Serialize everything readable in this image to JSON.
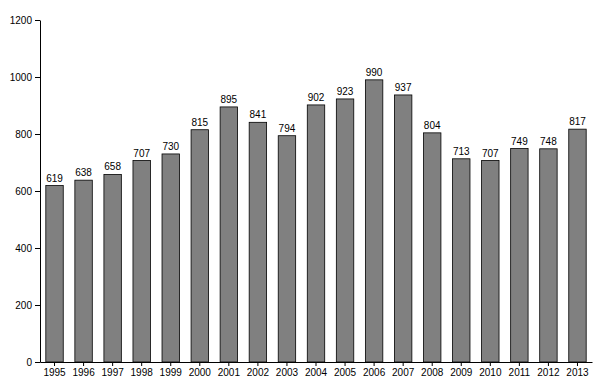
{
  "chart_data": {
    "type": "bar",
    "categories": [
      "1995",
      "1996",
      "1997",
      "1998",
      "1999",
      "2000",
      "2001",
      "2002",
      "2003",
      "2004",
      "2005",
      "2006",
      "2007",
      "2008",
      "2009",
      "2010",
      "2011",
      "2012",
      "2013"
    ],
    "values": [
      619,
      638,
      658,
      707,
      730,
      815,
      895,
      841,
      794,
      902,
      923,
      990,
      937,
      804,
      713,
      707,
      749,
      748,
      817
    ],
    "color": "#808080",
    "ylim": [
      0,
      1200
    ],
    "yticks": [
      0,
      200,
      400,
      600,
      800,
      1000,
      1200
    ],
    "grid": false,
    "data_labels": true
  }
}
